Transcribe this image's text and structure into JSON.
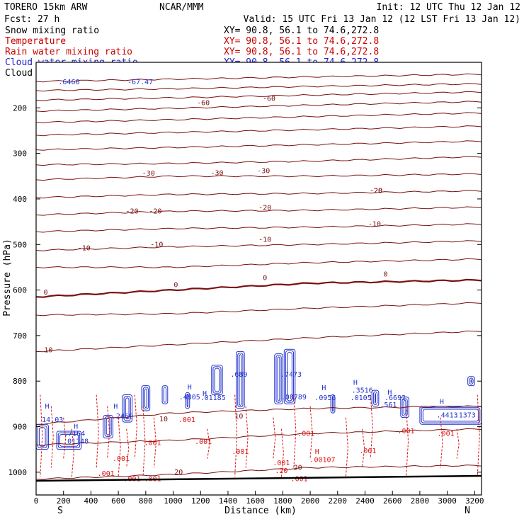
{
  "header": {
    "model": "TORERO  15km ARW",
    "center": "NCAR/MMM",
    "init": "Init: 12 UTC Thu 12 Jan 12",
    "fcst": "Fcst:   27 h",
    "valid": "Valid: 15 UTC Fri 13 Jan 12 (12 LST Fri 13 Jan 12)"
  },
  "legend": [
    {
      "label": "Snow mixing ratio",
      "xy": "XY=  90.8, 56.1 to  74.6,272.8",
      "color": "#000000"
    },
    {
      "label": "Temperature",
      "xy": "XY=  90.8, 56.1 to  74.6,272.8",
      "color": "#cc0000"
    },
    {
      "label": "Rain water mixing ratio",
      "xy": "XY=  90.8, 56.1 to  74.6,272.8",
      "color": "#cc0000"
    },
    {
      "label": "Cloud water mixing ratio",
      "xy": "XY=  90.8, 56.1 to  74.6,272.8",
      "color": "#2222cc"
    },
    {
      "label": "Cloud ice mixing ratio",
      "xy": "XY=  90.8, 56.1 to  74.6,272.8",
      "color": "#000000"
    }
  ],
  "chart_data": {
    "type": "line",
    "title": "Vertical cross section",
    "xlabel": "Distance (km)",
    "ylabel": "Pressure (hPa)",
    "xlim": [
      0,
      3250
    ],
    "ylim": [
      1050,
      100
    ],
    "x_ticks": [
      0,
      200,
      400,
      600,
      800,
      1000,
      1200,
      1400,
      1600,
      1800,
      2000,
      2200,
      2400,
      2600,
      2800,
      3000,
      3200
    ],
    "y_ticks": [
      200,
      300,
      400,
      500,
      600,
      700,
      800,
      900,
      1000
    ],
    "x_end_labels": {
      "left": "S",
      "right": "N"
    },
    "temperature_isotherms": [
      {
        "value": -60,
        "x": [
          0,
          1000,
          2000,
          3250
        ],
        "p": [
          142,
          137,
          132,
          126
        ],
        "label": ""
      },
      {
        "value": -60,
        "x": [
          0,
          1000,
          2000,
          3250
        ],
        "p": [
          162,
          158,
          153,
          147
        ],
        "label": ""
      },
      {
        "value": -60,
        "x": [
          0,
          1000,
          2000,
          3250
        ],
        "p": [
          183,
          178,
          172,
          165
        ],
        "label": "-60"
      },
      {
        "value": -50,
        "x": [
          0,
          1000,
          2000,
          3250
        ],
        "p": [
          207,
          201,
          194,
          186
        ],
        "label": ""
      },
      {
        "value": -50,
        "x": [
          0,
          1000,
          2000,
          3250
        ],
        "p": [
          232,
          226,
          219,
          211
        ],
        "label": ""
      },
      {
        "value": -40,
        "x": [
          0,
          1000,
          2000,
          3250
        ],
        "p": [
          260,
          254,
          248,
          240
        ],
        "label": ""
      },
      {
        "value": -40,
        "x": [
          0,
          1000,
          2000,
          3250
        ],
        "p": [
          292,
          287,
          281,
          273
        ],
        "label": ""
      },
      {
        "value": -30,
        "x": [
          0,
          1000,
          2000,
          3250
        ],
        "p": [
          325,
          322,
          317,
          307
        ],
        "label": ""
      },
      {
        "value": -30,
        "x": [
          0,
          1000,
          2000,
          3250
        ],
        "p": [
          358,
          350,
          350,
          345
        ],
        "label": "-30"
      },
      {
        "value": -20,
        "x": [
          0,
          1000,
          2000,
          3250
        ],
        "p": [
          397,
          390,
          388,
          382
        ],
        "label": ""
      },
      {
        "value": -20,
        "x": [
          0,
          1000,
          2000,
          3250
        ],
        "p": [
          435,
          427,
          425,
          418
        ],
        "label": "-20"
      },
      {
        "value": -10,
        "x": [
          0,
          1000,
          2000,
          3250
        ],
        "p": [
          472,
          465,
          462,
          455
        ],
        "label": ""
      },
      {
        "value": -10,
        "x": [
          0,
          1000,
          2000,
          3250
        ],
        "p": [
          513,
          505,
          500,
          492
        ],
        "label": "-10"
      },
      {
        "value": 0,
        "x": [
          0,
          1000,
          2000,
          3250
        ],
        "p": [
          550,
          550,
          540,
          532
        ],
        "label": ""
      },
      {
        "value": 0,
        "x": [
          0,
          1000,
          2000,
          3250
        ],
        "p": [
          615,
          600,
          585,
          578
        ],
        "label": "0"
      },
      {
        "value": 0,
        "x": [
          0,
          1000,
          2000,
          3250
        ],
        "p": [
          655,
          652,
          640,
          628
        ],
        "label": ""
      },
      {
        "value": 10,
        "x": [
          0,
          1000,
          2000,
          3250
        ],
        "p": [
          735,
          720,
          705,
          690
        ],
        "label": "10"
      },
      {
        "value": 10,
        "x": [
          0,
          1000,
          2000,
          3250
        ],
        "p": [
          895,
          870,
          860,
          855
        ],
        "label": ""
      },
      {
        "value": 20,
        "x": [
          0,
          1000,
          2000,
          3250
        ],
        "p": [
          940,
          930,
          915,
          905
        ],
        "label": ""
      },
      {
        "value": 20,
        "x": [
          0,
          1000,
          2000,
          3250
        ],
        "p": [
          1015,
          1005,
          990,
          985
        ],
        "label": "20"
      }
    ],
    "contour_labels": [
      {
        "text": "-60",
        "x": 1220,
        "p": 194
      },
      {
        "text": "-60",
        "x": 1700,
        "p": 185
      },
      {
        "text": "-30",
        "x": 820,
        "p": 349
      },
      {
        "text": "-30",
        "x": 1320,
        "p": 348
      },
      {
        "text": "-30",
        "x": 1660,
        "p": 343
      },
      {
        "text": "-20",
        "x": 700,
        "p": 432
      },
      {
        "text": "-20",
        "x": 870,
        "p": 432
      },
      {
        "text": "-20",
        "x": 1670,
        "p": 424
      },
      {
        "text": "-20",
        "x": 2480,
        "p": 387
      },
      {
        "text": "-20",
        "x": 2480,
        "p": 387
      },
      {
        "text": "-10",
        "x": 350,
        "p": 513
      },
      {
        "text": "-10",
        "x": 880,
        "p": 505
      },
      {
        "text": "-10",
        "x": 1670,
        "p": 494
      },
      {
        "text": "-10",
        "x": 2470,
        "p": 460
      },
      {
        "text": "0",
        "x": 70,
        "p": 610
      },
      {
        "text": "0",
        "x": 1020,
        "p": 594
      },
      {
        "text": "0",
        "x": 1670,
        "p": 578
      },
      {
        "text": "0",
        "x": 2550,
        "p": 570
      },
      {
        "text": "10",
        "x": 90,
        "p": 737
      },
      {
        "text": "10",
        "x": 930,
        "p": 888
      },
      {
        "text": "10",
        "x": 1480,
        "p": 882
      },
      {
        "text": "20",
        "x": 1040,
        "p": 1005
      },
      {
        "text": "20",
        "x": 1910,
        "p": 995
      }
    ],
    "max_labels": [
      {
        "text": ".6466",
        "x": 240,
        "p": 148
      },
      {
        "text": "-67.47",
        "x": 760,
        "p": 148
      },
      {
        "text": "H",
        "x": 80,
        "p": 860
      },
      {
        "text": "14.03",
        "x": 120,
        "p": 890
      },
      {
        "text": "H",
        "x": 1120,
        "p": 818
      },
      {
        "text": ".4805",
        "x": 1120,
        "p": 840
      },
      {
        "text": "H",
        "x": 1230,
        "p": 832
      },
      {
        "text": ".01185",
        "x": 1290,
        "p": 842
      },
      {
        "text": ".689",
        "x": 1480,
        "p": 790
      },
      {
        "text": ".7473",
        "x": 1860,
        "p": 790
      },
      {
        "text": ".08789",
        "x": 1880,
        "p": 840
      },
      {
        "text": "H",
        "x": 2100,
        "p": 820
      },
      {
        "text": ".0956",
        "x": 2110,
        "p": 842
      },
      {
        "text": "H",
        "x": 2330,
        "p": 808
      },
      {
        "text": ".3516",
        "x": 2380,
        "p": 825
      },
      {
        "text": ".0105",
        "x": 2370,
        "p": 842
      },
      {
        "text": "H",
        "x": 2580,
        "p": 830
      },
      {
        "text": ".6692",
        "x": 2620,
        "p": 842
      },
      {
        "text": ".561",
        "x": 2570,
        "p": 857
      },
      {
        "text": "H",
        "x": 2960,
        "p": 850
      },
      {
        "text": ".4413",
        "x": 3000,
        "p": 880
      },
      {
        "text": ".1373",
        "x": 3130,
        "p": 880
      },
      {
        "text": "H",
        "x": 580,
        "p": 860
      },
      {
        "text": ".2469",
        "x": 630,
        "p": 882
      },
      {
        "text": "H",
        "x": 290,
        "p": 905
      },
      {
        "text": ".7164",
        "x": 280,
        "p": 920
      },
      {
        "text": ".01148",
        "x": 290,
        "p": 937
      }
    ],
    "rain_labels": [
      {
        "text": ".001",
        "x": 620,
        "p": 975
      },
      {
        "text": ".001",
        "x": 510,
        "p": 1008
      },
      {
        "text": ".001",
        "x": 700,
        "p": 1020
      },
      {
        "text": ".001",
        "x": 850,
        "p": 1020
      },
      {
        "text": ".001",
        "x": 850,
        "p": 940
      },
      {
        "text": ".001",
        "x": 1100,
        "p": 890
      },
      {
        "text": ".001",
        "x": 1220,
        "p": 938
      },
      {
        "text": ".001",
        "x": 1490,
        "p": 960
      },
      {
        "text": ".001",
        "x": 1790,
        "p": 985
      },
      {
        "text": ".001",
        "x": 1920,
        "p": 1020
      },
      {
        "text": ".001",
        "x": 1970,
        "p": 920
      },
      {
        "text": ".00107",
        "x": 2090,
        "p": 978
      },
      {
        "text": ".001",
        "x": 2420,
        "p": 958
      },
      {
        "text": ".001",
        "x": 2700,
        "p": 915
      },
      {
        "text": ".001",
        "x": 2990,
        "p": 920
      },
      {
        "text": ".20",
        "x": 1790,
        "p": 1002
      },
      {
        "text": "H",
        "x": 2050,
        "p": 960
      }
    ],
    "cloud_water_cells": [
      {
        "x0": 0,
        "x1": 90,
        "p0": 895,
        "p1": 950
      },
      {
        "x0": 150,
        "x1": 330,
        "p0": 910,
        "p1": 950
      },
      {
        "x0": 490,
        "x1": 560,
        "p0": 875,
        "p1": 925
      },
      {
        "x0": 630,
        "x1": 700,
        "p0": 830,
        "p1": 890
      },
      {
        "x0": 770,
        "x1": 830,
        "p0": 810,
        "p1": 865
      },
      {
        "x0": 920,
        "x1": 960,
        "p0": 810,
        "p1": 850
      },
      {
        "x0": 1090,
        "x1": 1120,
        "p0": 825,
        "p1": 860
      },
      {
        "x0": 1280,
        "x1": 1360,
        "p0": 765,
        "p1": 830
      },
      {
        "x0": 1460,
        "x1": 1520,
        "p0": 735,
        "p1": 860
      },
      {
        "x0": 1740,
        "x1": 1800,
        "p0": 740,
        "p1": 850
      },
      {
        "x0": 1810,
        "x1": 1890,
        "p0": 730,
        "p1": 850
      },
      {
        "x0": 2150,
        "x1": 2180,
        "p0": 830,
        "p1": 870
      },
      {
        "x0": 2450,
        "x1": 2500,
        "p0": 820,
        "p1": 855
      },
      {
        "x0": 2660,
        "x1": 2720,
        "p0": 835,
        "p1": 880
      },
      {
        "x0": 2800,
        "x1": 3250,
        "p0": 855,
        "p1": 895
      },
      {
        "x0": 3150,
        "x1": 3200,
        "p0": 790,
        "p1": 810
      }
    ],
    "rain_streaks_x": [
      30,
      110,
      200,
      260,
      440,
      520,
      600,
      660,
      720,
      780,
      860,
      1250,
      1450,
      1530,
      1730,
      1790,
      1880,
      2000,
      2260,
      2380,
      2440,
      2700,
      2950,
      3070,
      3220
    ]
  }
}
